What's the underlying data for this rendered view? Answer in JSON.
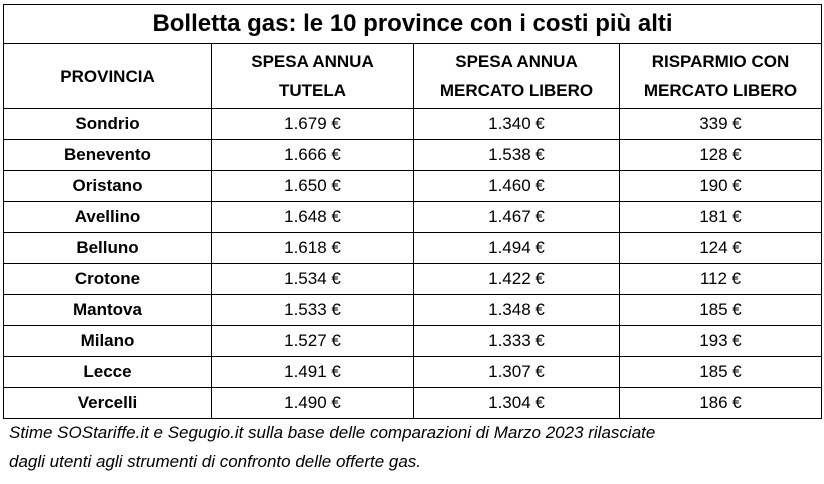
{
  "title": "Bolletta gas: le 10 province con i costi più alti",
  "headers": {
    "provincia": "PROVINCIA",
    "tutela_line1": "SPESA ANNUA",
    "tutela_line2": "TUTELA",
    "libero_line1": "SPESA ANNUA",
    "libero_line2": "MERCATO LIBERO",
    "risparmio_line1": "RISPARMIO CON",
    "risparmio_line2": "MERCATO LIBERO"
  },
  "rows": [
    {
      "provincia": "Sondrio",
      "tutela": "1.679 €",
      "libero": "1.340 €",
      "risparmio": "339 €"
    },
    {
      "provincia": "Benevento",
      "tutela": "1.666 €",
      "libero": "1.538 €",
      "risparmio": "128 €"
    },
    {
      "provincia": "Oristano",
      "tutela": "1.650 €",
      "libero": "1.460 €",
      "risparmio": "190 €"
    },
    {
      "provincia": "Avellino",
      "tutela": "1.648 €",
      "libero": "1.467 €",
      "risparmio": "181 €"
    },
    {
      "provincia": "Belluno",
      "tutela": "1.618 €",
      "libero": "1.494 €",
      "risparmio": "124 €"
    },
    {
      "provincia": "Crotone",
      "tutela": "1.534 €",
      "libero": "1.422 €",
      "risparmio": "112 €"
    },
    {
      "provincia": "Mantova",
      "tutela": "1.533 €",
      "libero": "1.348 €",
      "risparmio": "185 €"
    },
    {
      "provincia": "Milano",
      "tutela": "1.527 €",
      "libero": "1.333 €",
      "risparmio": "193 €"
    },
    {
      "provincia": "Lecce",
      "tutela": "1.491 €",
      "libero": "1.307 €",
      "risparmio": "185 €"
    },
    {
      "provincia": "Vercelli",
      "tutela": "1.490 €",
      "libero": "1.304 €",
      "risparmio": "186 €"
    }
  ],
  "note_line1": "Stime SOStariffe.it e Segugio.it sulla base delle comparazioni di Marzo 2023 rilasciate",
  "note_line2": "dagli utenti agli strumenti di confronto delle offerte gas."
}
